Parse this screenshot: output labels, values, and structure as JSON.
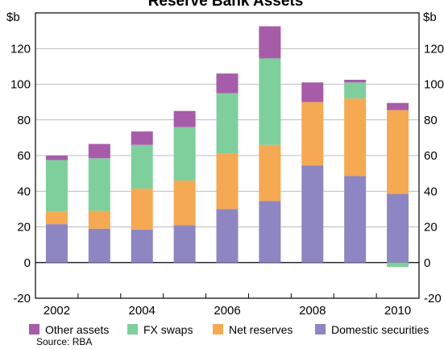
{
  "chart_data": {
    "type": "bar",
    "stacked": true,
    "title": "Reserve Bank Assets",
    "unit_left": "$b",
    "unit_right": "$b",
    "ylim": [
      -20,
      140
    ],
    "yticks": [
      -20,
      0,
      20,
      40,
      60,
      80,
      100,
      120
    ],
    "xticks": [
      "2002",
      "2004",
      "2006",
      "2008",
      "2010"
    ],
    "categories": [
      "2002",
      "2003",
      "2004",
      "2005",
      "2006",
      "2007",
      "2008",
      "2009",
      "2010"
    ],
    "grid": true,
    "legend_position": "bottom",
    "series": [
      {
        "name": "Domestic securities",
        "color": "#8e86c2",
        "values": [
          21.5,
          19,
          18.5,
          21,
          30,
          34.5,
          54.5,
          48.5,
          38.5
        ]
      },
      {
        "name": "Net reserves",
        "color": "#f5a953",
        "values": [
          7,
          10,
          23,
          25,
          31,
          31.5,
          35.5,
          43.5,
          47
        ]
      },
      {
        "name": "FX swaps",
        "color": "#7fcf9c",
        "values": [
          29,
          29.5,
          24.5,
          30,
          34,
          48.5,
          0,
          9,
          -2.5
        ]
      },
      {
        "name": "Other assets",
        "color": "#a65ca8",
        "values": [
          2.5,
          8,
          7.5,
          9,
          11,
          18,
          11,
          1.5,
          4
        ]
      }
    ],
    "legend_order": [
      "Other assets",
      "FX swaps",
      "Net reserves",
      "Domestic securities"
    ]
  },
  "source": "Source: RBA"
}
